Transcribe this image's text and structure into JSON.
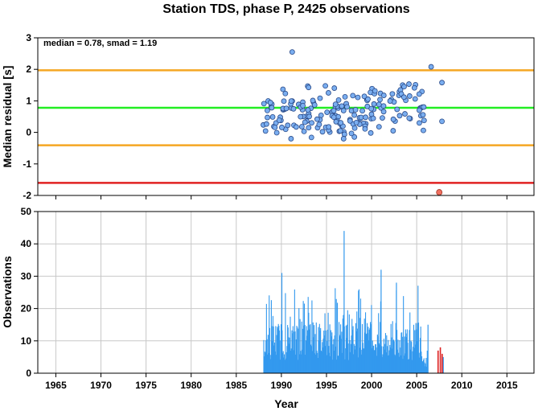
{
  "chart_data": [
    {
      "type": "scatter",
      "title": "Station TDS, phase P, 2425 observations",
      "ylabel": "Median residual [s]",
      "annotation": "median = 0.78, smad = 1.19",
      "xlim": [
        1963,
        2018
      ],
      "ylim": [
        -2,
        3
      ],
      "yticks": [
        -2,
        -1,
        0,
        1,
        2,
        3
      ],
      "grid": false,
      "reference_lines": [
        {
          "role": "median",
          "value": 0.78,
          "color": "#22ee22"
        },
        {
          "role": "median_plus_smad",
          "value": 1.97,
          "color": "#f5a623"
        },
        {
          "role": "median_minus_smad",
          "value": -0.41,
          "color": "#f5a623"
        },
        {
          "role": "lower_limit",
          "value": -1.6,
          "color": "#e02020"
        }
      ],
      "colors": {
        "points": "#7aaef0",
        "point_edge": "#2a4a88",
        "outlier": "#f07060"
      },
      "outliers": [
        {
          "x": 2007.5,
          "y": -1.9
        }
      ]
    },
    {
      "type": "bar",
      "xlabel": "Year",
      "ylabel": "Observations",
      "xlim": [
        1963,
        2018
      ],
      "ylim": [
        0,
        50
      ],
      "xticks": [
        1965,
        1970,
        1975,
        1980,
        1985,
        1990,
        1995,
        2000,
        2005,
        2010,
        2015
      ],
      "yticks": [
        0,
        10,
        20,
        30,
        40,
        50
      ],
      "grid": true,
      "colors": {
        "bars": "#3399ee",
        "flagged": "#dd2222",
        "grid": "#c8c8c8"
      },
      "flagged_bars": [
        {
          "x": 2007.3,
          "value": 7
        },
        {
          "x": 2007.55,
          "value": 8
        },
        {
          "x": 2007.75,
          "value": 6
        }
      ]
    }
  ]
}
